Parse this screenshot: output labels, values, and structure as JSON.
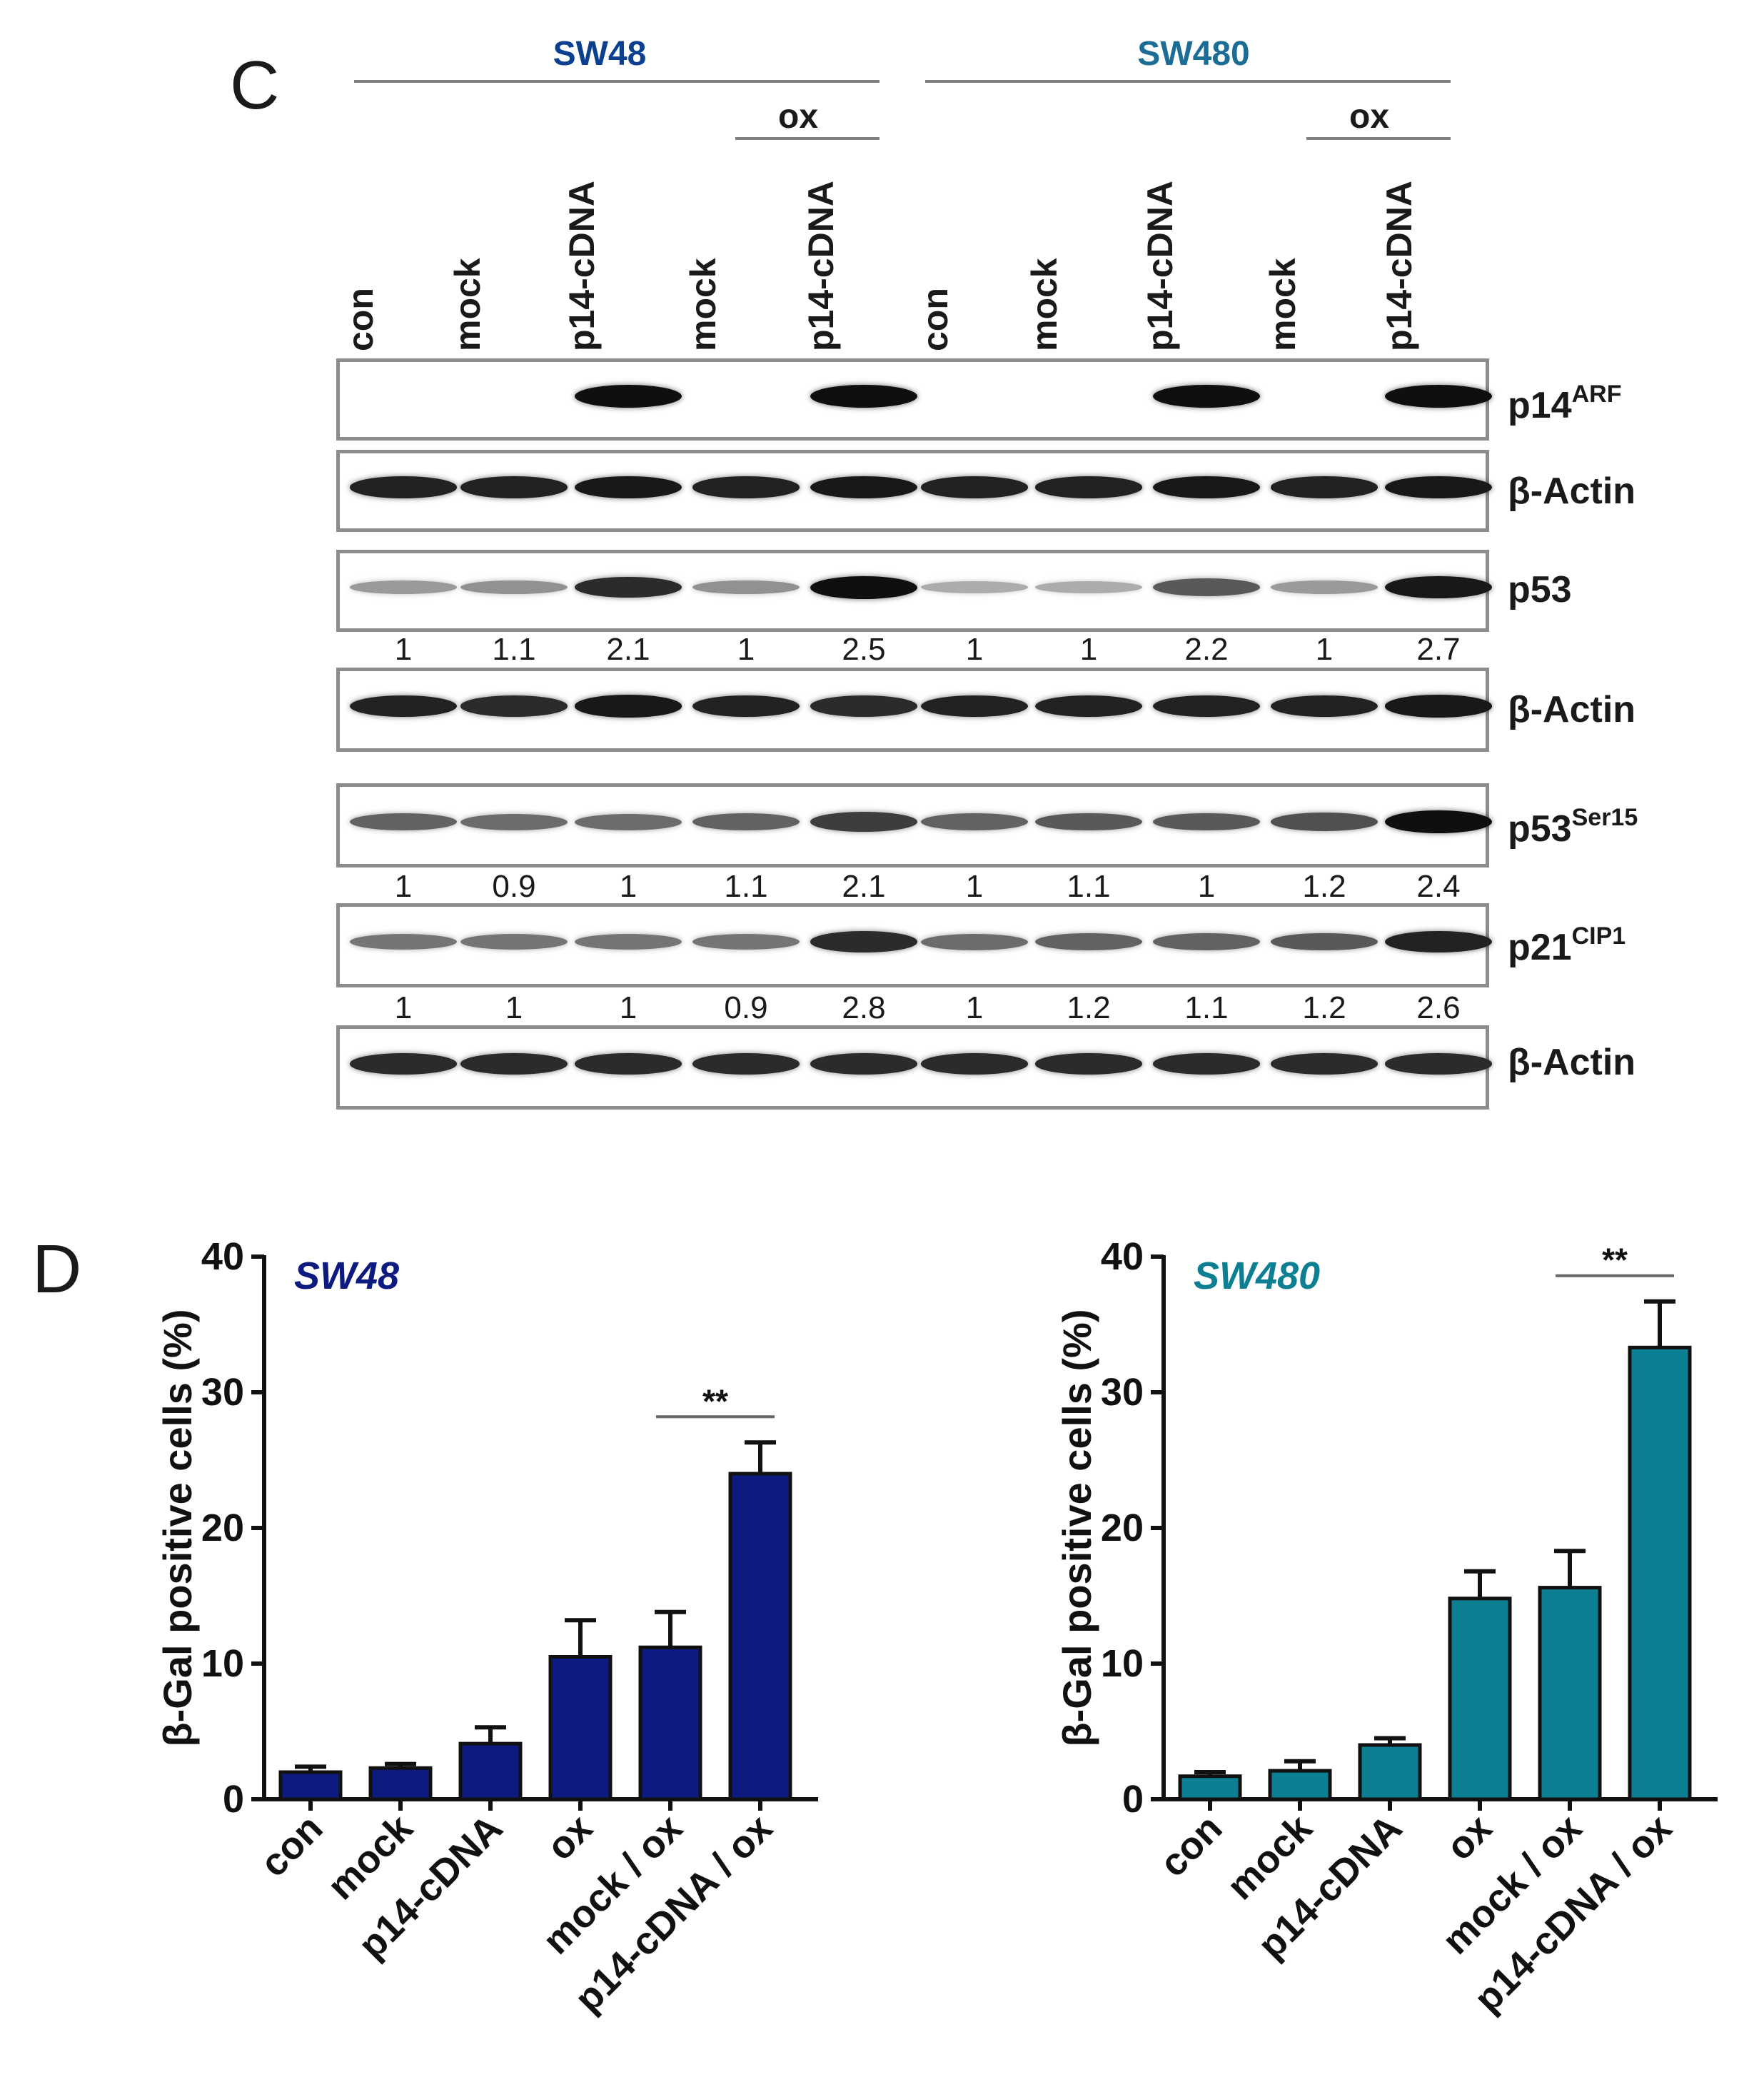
{
  "panel_c": {
    "letter": "C",
    "cell_lines": [
      {
        "name": "SW48",
        "color": "#0b3f8f"
      },
      {
        "name": "SW480",
        "color": "#1b6d95"
      }
    ],
    "ox_label": "ox",
    "lanes": [
      "con",
      "mock",
      "p14-cDNA",
      "mock",
      "p14-cDNA",
      "con",
      "mock",
      "p14-cDNA",
      "mock",
      "p14-cDNA"
    ],
    "blots": [
      {
        "name": "p14",
        "sup": "ARF",
        "band_intensity": [
          0,
          0,
          1.0,
          0,
          1.0,
          0,
          0,
          1.0,
          0,
          1.0
        ],
        "quant": null
      },
      {
        "name": "β-Actin",
        "sup": "",
        "band_intensity": [
          0.9,
          0.9,
          0.95,
          0.9,
          0.95,
          0.9,
          0.9,
          0.95,
          0.9,
          0.95
        ],
        "quant": null
      },
      {
        "name": "p53",
        "sup": "",
        "band_intensity": [
          0.25,
          0.3,
          0.85,
          0.3,
          1.0,
          0.15,
          0.15,
          0.6,
          0.25,
          0.95
        ],
        "quant": [
          "1",
          "1.1",
          "2.1",
          "1",
          "2.5",
          "1",
          "1",
          "2.2",
          "1",
          "2.7"
        ]
      },
      {
        "name": "β-Actin",
        "sup": "",
        "band_intensity": [
          0.9,
          0.85,
          0.95,
          0.9,
          0.85,
          0.9,
          0.9,
          0.9,
          0.9,
          0.95
        ],
        "quant": null
      },
      {
        "name": "p53",
        "sup": "Ser15",
        "band_intensity": [
          0.55,
          0.5,
          0.5,
          0.55,
          0.75,
          0.55,
          0.6,
          0.6,
          0.65,
          1.0
        ],
        "quant": [
          "1",
          "0.9",
          "1",
          "1.1",
          "2.1",
          "1",
          "1.1",
          "1",
          "1.2",
          "2.4"
        ]
      },
      {
        "name": "p21",
        "sup": "CIP1",
        "band_intensity": [
          0.45,
          0.45,
          0.45,
          0.45,
          0.85,
          0.5,
          0.55,
          0.55,
          0.6,
          0.9
        ],
        "quant": [
          "1",
          "1",
          "1",
          "0.9",
          "2.8",
          "1",
          "1.2",
          "1.1",
          "1.2",
          "2.6"
        ]
      },
      {
        "name": "β-Actin",
        "sup": "",
        "band_intensity": [
          0.85,
          0.85,
          0.85,
          0.85,
          0.85,
          0.85,
          0.85,
          0.85,
          0.85,
          0.85
        ],
        "quant": null
      }
    ]
  },
  "panel_d": {
    "letter": "D",
    "significance": "**"
  },
  "chart_data": [
    {
      "type": "bar",
      "title": "SW48",
      "color": "#0d1a7f",
      "categories": [
        "con",
        "mock",
        "p14-cDNA",
        "ox",
        "mock / ox",
        "p14-cDNA / ox"
      ],
      "values": [
        2.0,
        2.3,
        4.1,
        10.5,
        11.2,
        24.0
      ],
      "errors": [
        0.4,
        0.3,
        1.2,
        2.7,
        2.6,
        2.3
      ],
      "xlabel": "",
      "ylabel": "β-Gal positive cells (%)",
      "ylim": [
        0,
        40
      ],
      "yticks": [
        "0",
        "10",
        "20",
        "30",
        "40"
      ],
      "significance": {
        "label": "**",
        "between": [
          "mock / ox",
          "p14-cDNA / ox"
        ]
      }
    },
    {
      "type": "bar",
      "title": "SW480",
      "color": "#0d7f93",
      "categories": [
        "con",
        "mock",
        "p14-cDNA",
        "ox",
        "mock / ox",
        "p14-cDNA / ox"
      ],
      "values": [
        1.7,
        2.1,
        4.0,
        14.8,
        15.6,
        33.3
      ],
      "errors": [
        0.3,
        0.7,
        0.5,
        2.0,
        2.7,
        3.4
      ],
      "xlabel": "",
      "ylabel": "β-Gal positive cells (%)",
      "ylim": [
        0,
        40
      ],
      "yticks": [
        "0",
        "10",
        "20",
        "30",
        "40"
      ],
      "significance": {
        "label": "**",
        "between": [
          "mock / ox",
          "p14-cDNA / ox"
        ]
      }
    }
  ]
}
